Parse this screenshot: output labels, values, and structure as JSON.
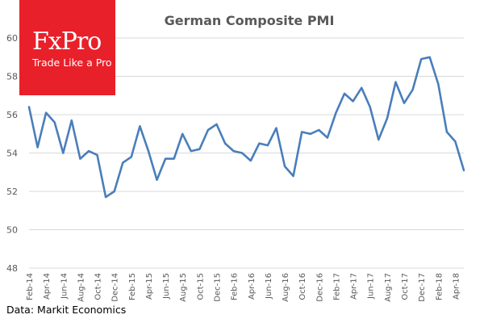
{
  "logo": {
    "name": "FxPro",
    "tagline": "Trade Like a Pro"
  },
  "source": "Data: Markit Economics",
  "colors": {
    "line": "#4a7ebb",
    "grid": "#d9d9d9",
    "brand": "#e8202a",
    "axis_text": "#595959",
    "title": "#595959"
  },
  "chart_data": {
    "type": "line",
    "title": "German Composite PMI",
    "xlabel": "",
    "ylabel": "",
    "ylim": [
      48,
      60
    ],
    "yticks": [
      48,
      50,
      52,
      54,
      56,
      58,
      60
    ],
    "grid": true,
    "x": [
      "Feb-14",
      "Mar-14",
      "Apr-14",
      "May-14",
      "Jun-14",
      "Jul-14",
      "Aug-14",
      "Sep-14",
      "Oct-14",
      "Nov-14",
      "Dec-14",
      "Jan-15",
      "Feb-15",
      "Mar-15",
      "Apr-15",
      "May-15",
      "Jun-15",
      "Jul-15",
      "Aug-15",
      "Sep-15",
      "Oct-15",
      "Nov-15",
      "Dec-15",
      "Jan-16",
      "Feb-16",
      "Mar-16",
      "Apr-16",
      "May-16",
      "Jun-16",
      "Jul-16",
      "Aug-16",
      "Sep-16",
      "Oct-16",
      "Nov-16",
      "Dec-16",
      "Jan-17",
      "Feb-17",
      "Mar-17",
      "Apr-17",
      "May-17",
      "Jun-17",
      "Jul-17",
      "Aug-17",
      "Sep-17",
      "Oct-17",
      "Nov-17",
      "Dec-17",
      "Jan-18",
      "Feb-18",
      "Mar-18",
      "Apr-18",
      "May-18"
    ],
    "xtick_labels": [
      "Feb-14",
      "Apr-14",
      "Jun-14",
      "Aug-14",
      "Oct-14",
      "Dec-14",
      "Feb-15",
      "Apr-15",
      "Jun-15",
      "Aug-15",
      "Oct-15",
      "Dec-15",
      "Feb-16",
      "Apr-16",
      "Jun-16",
      "Aug-16",
      "Oct-16",
      "Dec-16",
      "Feb-17",
      "Apr-17",
      "Jun-17",
      "Aug-17",
      "Oct-17",
      "Dec-17",
      "Feb-18",
      "Apr-18"
    ],
    "series": [
      {
        "name": "German Composite PMI",
        "values": [
          56.4,
          54.3,
          56.1,
          55.6,
          54.0,
          55.7,
          53.7,
          54.1,
          53.9,
          51.7,
          52.0,
          53.5,
          53.8,
          55.4,
          54.1,
          52.6,
          53.7,
          53.7,
          55.0,
          54.1,
          54.2,
          55.2,
          55.5,
          54.5,
          54.1,
          54.0,
          53.6,
          54.5,
          54.4,
          55.3,
          53.3,
          52.8,
          55.1,
          55.0,
          55.2,
          54.8,
          56.1,
          57.1,
          56.7,
          57.4,
          56.4,
          54.7,
          55.8,
          57.7,
          56.6,
          57.3,
          58.9,
          59.0,
          57.6,
          55.1,
          54.6,
          53.1
        ]
      }
    ]
  }
}
